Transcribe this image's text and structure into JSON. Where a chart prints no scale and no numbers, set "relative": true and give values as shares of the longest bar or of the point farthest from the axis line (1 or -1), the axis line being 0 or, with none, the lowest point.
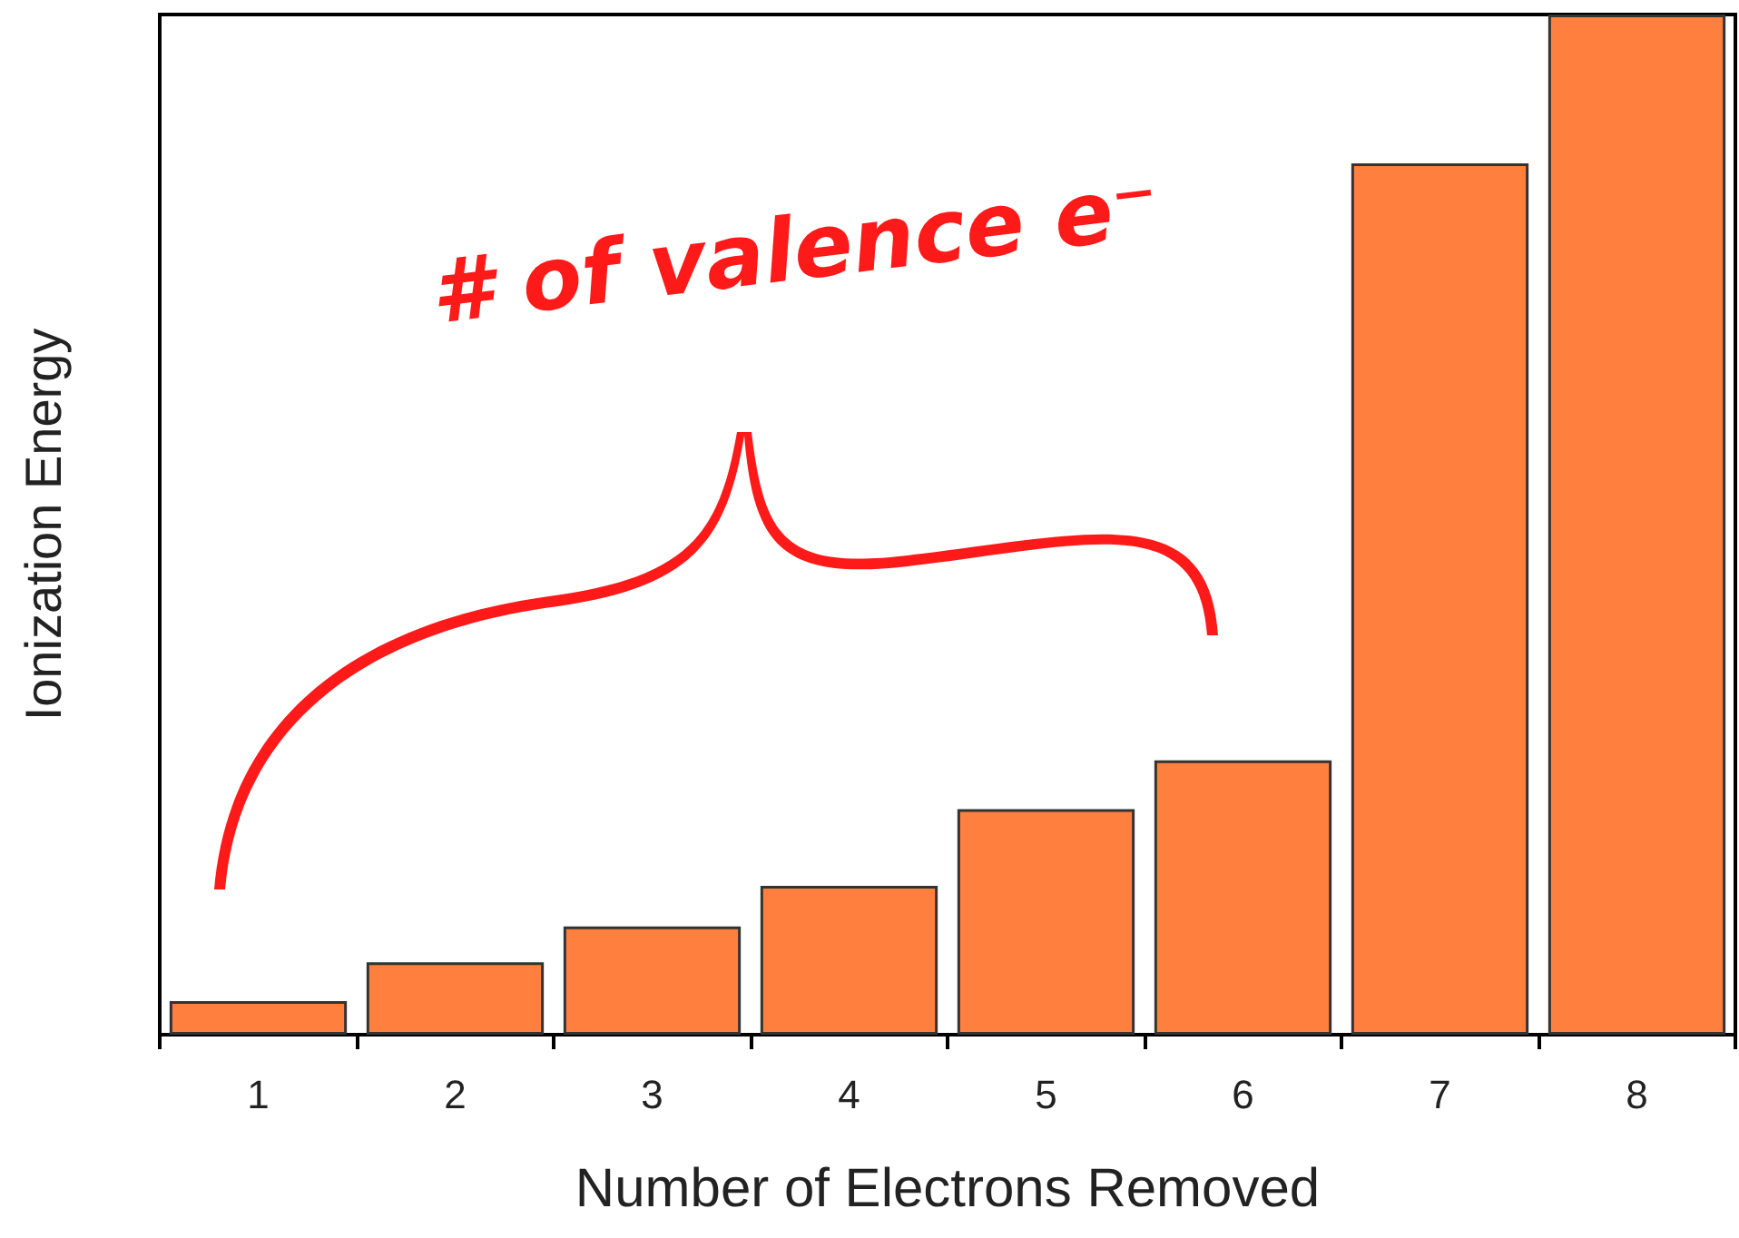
{
  "chart_data": {
    "type": "bar",
    "xlabel": "Number of Electrons Removed",
    "ylabel": "Ionization Energy",
    "categories": [
      "1",
      "2",
      "3",
      "4",
      "5",
      "6",
      "7",
      "8"
    ],
    "values": [
      0.033,
      0.071,
      0.106,
      0.146,
      0.221,
      0.269,
      0.854,
      1
    ],
    "color": "#ff7f3f",
    "relative": true,
    "grid": false,
    "annotations": [
      "# of valence e⁻"
    ]
  }
}
